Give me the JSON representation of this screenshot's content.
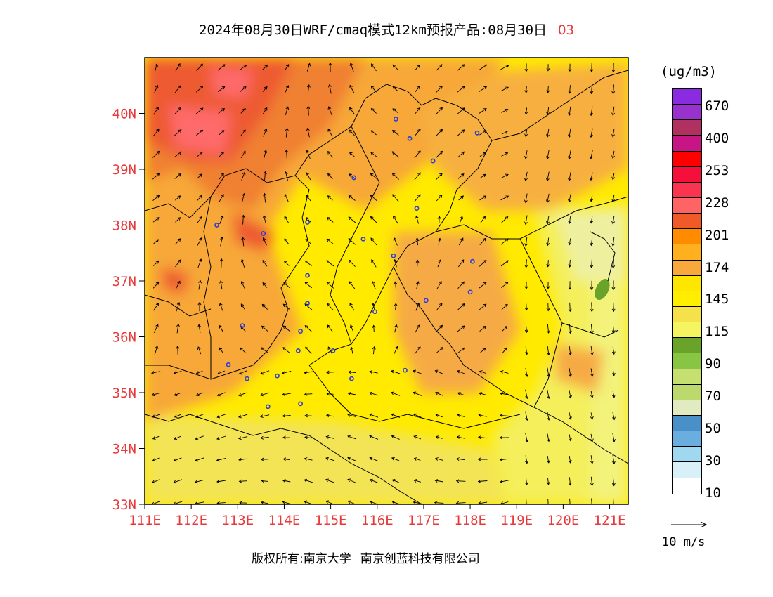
{
  "title": {
    "text": "2024年08月30日WRF/cmaq模式12km预报产品:08月30日",
    "species": "O3"
  },
  "axes": {
    "lat_labels": [
      "40N",
      "39N",
      "38N",
      "37N",
      "36N",
      "35N",
      "34N",
      "33N"
    ],
    "lon_labels": [
      "111E",
      "112E",
      "113E",
      "114E",
      "115E",
      "116E",
      "117E",
      "118E",
      "119E",
      "120E",
      "121E"
    ],
    "lon_range": [
      111,
      121.4
    ],
    "lat_range": [
      33,
      41
    ]
  },
  "legend": {
    "unit": "(ug/m3)",
    "colors": [
      "#8a2be2",
      "#9932cc",
      "#b0305f",
      "#c71585",
      "#ff0000",
      "#f5103c",
      "#f8344f",
      "#ff6464",
      "#f05a28",
      "#ff8c00",
      "#ffb01f",
      "#f9a93c",
      "#ffe600",
      "#ffee00",
      "#f5e14a",
      "#f5f562",
      "#6aa329",
      "#88c542",
      "#c5e070",
      "#bcd96d",
      "#e0ecc0",
      "#4a90c8",
      "#6aaee0",
      "#a0d8f0",
      "#d8f0f8",
      "#ffffff"
    ],
    "labels": [
      "670",
      "400",
      "253",
      "228",
      "201",
      "174",
      "145",
      "115",
      "90",
      "70",
      "50",
      "30",
      "10"
    ]
  },
  "wind_scale": {
    "label": "10 m/s"
  },
  "footer": {
    "left": "版权所有:南京大学",
    "right": "南京创蓝科技有限公司"
  },
  "stations": [
    [
      116.4,
      39.9
    ],
    [
      116.7,
      39.55
    ],
    [
      118.15,
      39.65
    ],
    [
      117.2,
      39.15
    ],
    [
      115.5,
      38.85
    ],
    [
      116.85,
      38.3
    ],
    [
      112.55,
      38
    ],
    [
      113.55,
      37.85
    ],
    [
      114.5,
      38.05
    ],
    [
      115.7,
      37.75
    ],
    [
      116.35,
      37.45
    ],
    [
      118.05,
      37.35
    ],
    [
      114.5,
      37.1
    ],
    [
      114.5,
      36.6
    ],
    [
      118,
      36.8
    ],
    [
      117.05,
      36.65
    ],
    [
      115.95,
      36.45
    ],
    [
      113.1,
      36.2
    ],
    [
      114.35,
      36.1
    ],
    [
      114.3,
      35.75
    ],
    [
      115.05,
      35.75
    ],
    [
      112.8,
      35.5
    ],
    [
      113.2,
      35.25
    ],
    [
      113.85,
      35.3
    ],
    [
      115.45,
      35.25
    ],
    [
      116.6,
      35.4
    ],
    [
      114.35,
      34.8
    ],
    [
      113.65,
      34.75
    ]
  ]
}
